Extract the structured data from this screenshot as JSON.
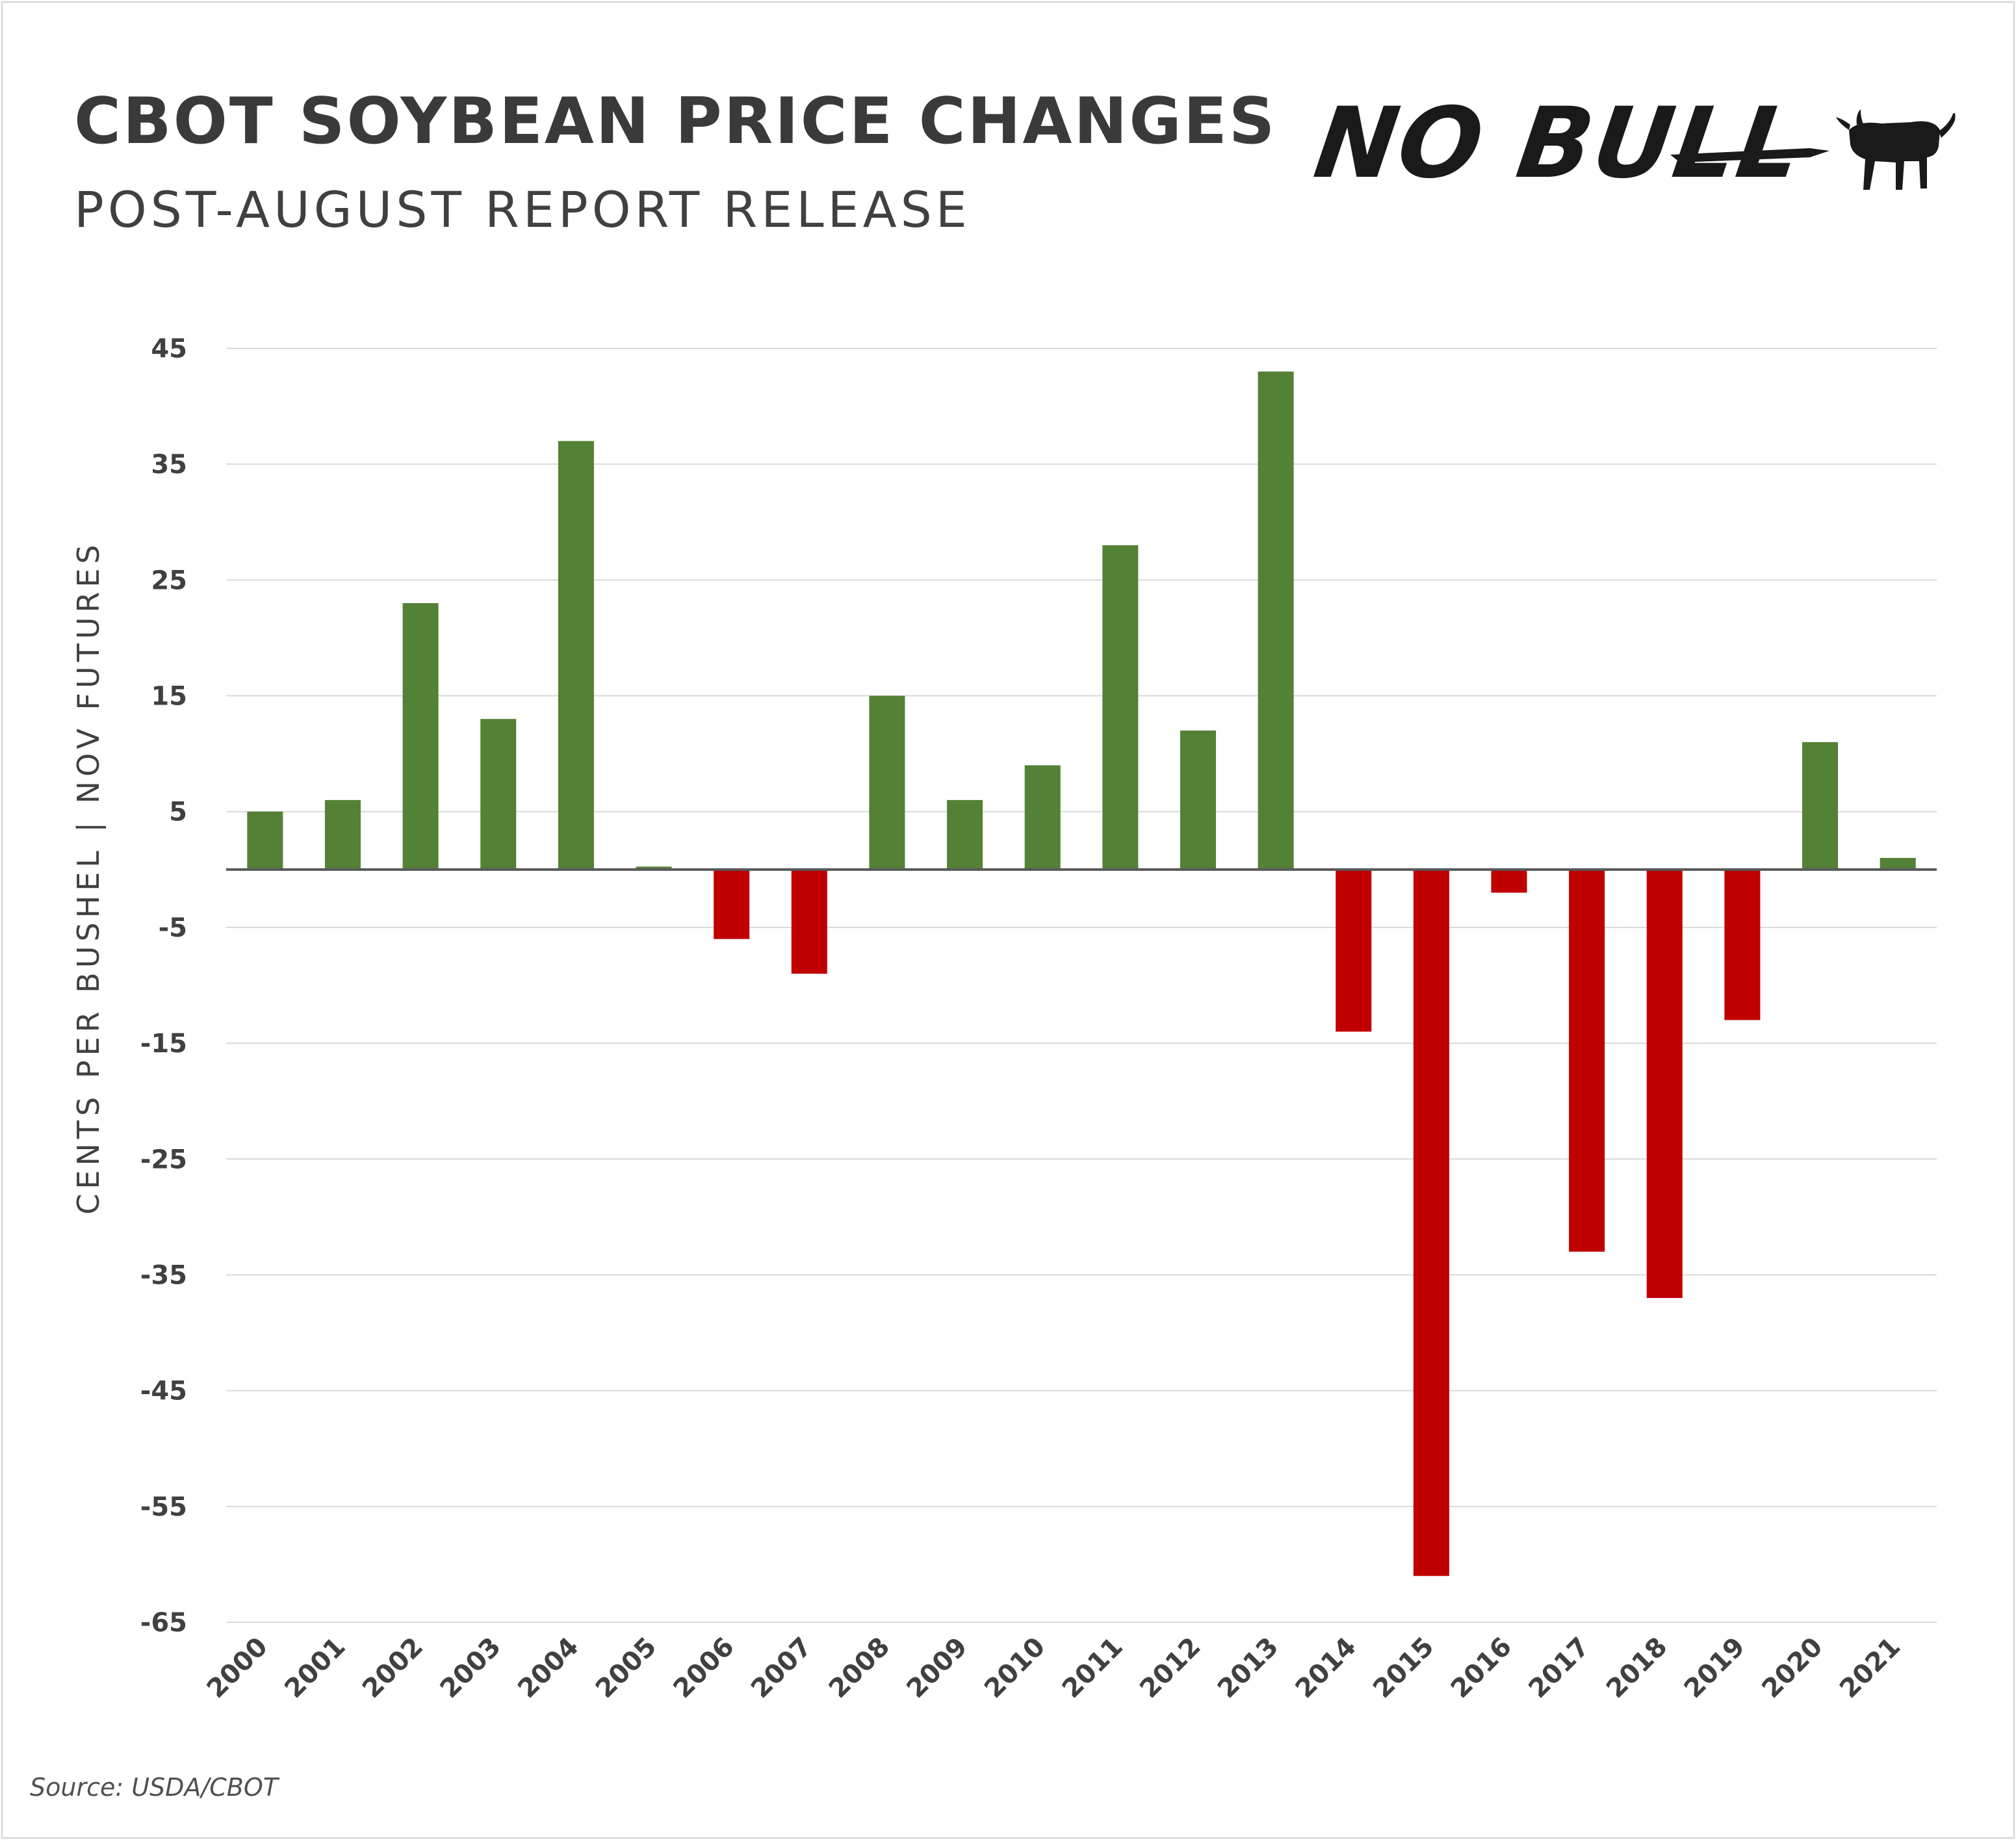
{
  "header": {
    "title": "CBOT SOYBEAN PRICE CHANGES",
    "subtitle": "POST-AUGUST REPORT RELEASE",
    "logo_text": "NO BULL"
  },
  "footer": {
    "source": "Source: USDA/CBOT"
  },
  "colors": {
    "positive": "#538135",
    "negative": "#C00000",
    "grid": "#d9d9d9",
    "axis": "#595959",
    "text": "#404040"
  },
  "icons": {
    "logo_mark": "bull-icon"
  },
  "chart_data": {
    "type": "bar",
    "ylabel": "CENTS PER BUSHEL | NOV FUTURES",
    "xlabel": "",
    "ylim": [
      -65,
      45
    ],
    "yticks": [
      45,
      35,
      25,
      15,
      5,
      -5,
      -15,
      -25,
      -35,
      -45,
      -55,
      -65
    ],
    "grid": true,
    "legend": "none",
    "categories": [
      "2000",
      "2001",
      "2002",
      "2003",
      "2004",
      "2005",
      "2006",
      "2007",
      "2008",
      "2009",
      "2010",
      "2011",
      "2012",
      "2013",
      "2014",
      "2015",
      "2016",
      "2017",
      "2018",
      "2019",
      "2020",
      "2021"
    ],
    "values": [
      5,
      6,
      23,
      13,
      37,
      0.25,
      -6,
      -9,
      15,
      6,
      9,
      28,
      12,
      43,
      -14,
      -61,
      -2,
      -33,
      -37,
      -13,
      11,
      1
    ]
  }
}
